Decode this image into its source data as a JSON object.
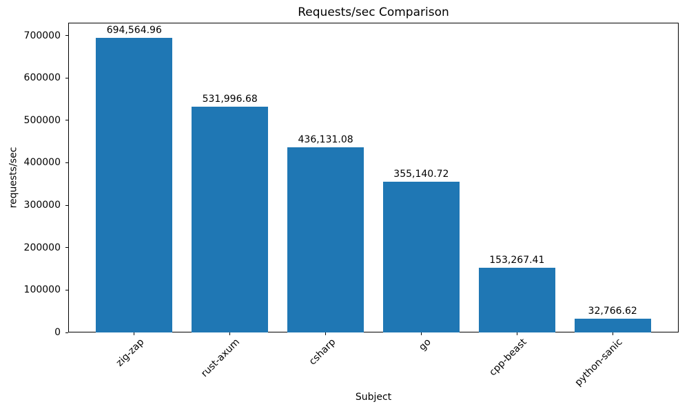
{
  "chart_data": {
    "type": "bar",
    "title": "Requests/sec Comparison",
    "xlabel": "Subject",
    "ylabel": "requests/sec",
    "categories": [
      "zig-zap",
      "rust-axum",
      "csharp",
      "go",
      "cpp-beast",
      "python-sanic"
    ],
    "values": [
      694564.96,
      531996.68,
      436131.08,
      355140.72,
      153267.41,
      32766.62
    ],
    "value_labels": [
      "694,564.96",
      "531,996.68",
      "436,131.08",
      "355,140.72",
      "153,267.41",
      "32,766.62"
    ],
    "yticks": [
      0,
      100000,
      200000,
      300000,
      400000,
      500000,
      600000,
      700000
    ],
    "ytick_labels": [
      "0",
      "100000",
      "200000",
      "300000",
      "400000",
      "500000",
      "600000",
      "700000"
    ],
    "ylim": [
      0,
      730000
    ],
    "xtick_rotation_deg": 45,
    "grid": false,
    "legend_position": "none",
    "bar_color": "#1f77b4",
    "axis_color": "#000000",
    "text_color": "#000000",
    "background_color": "#ffffff"
  }
}
